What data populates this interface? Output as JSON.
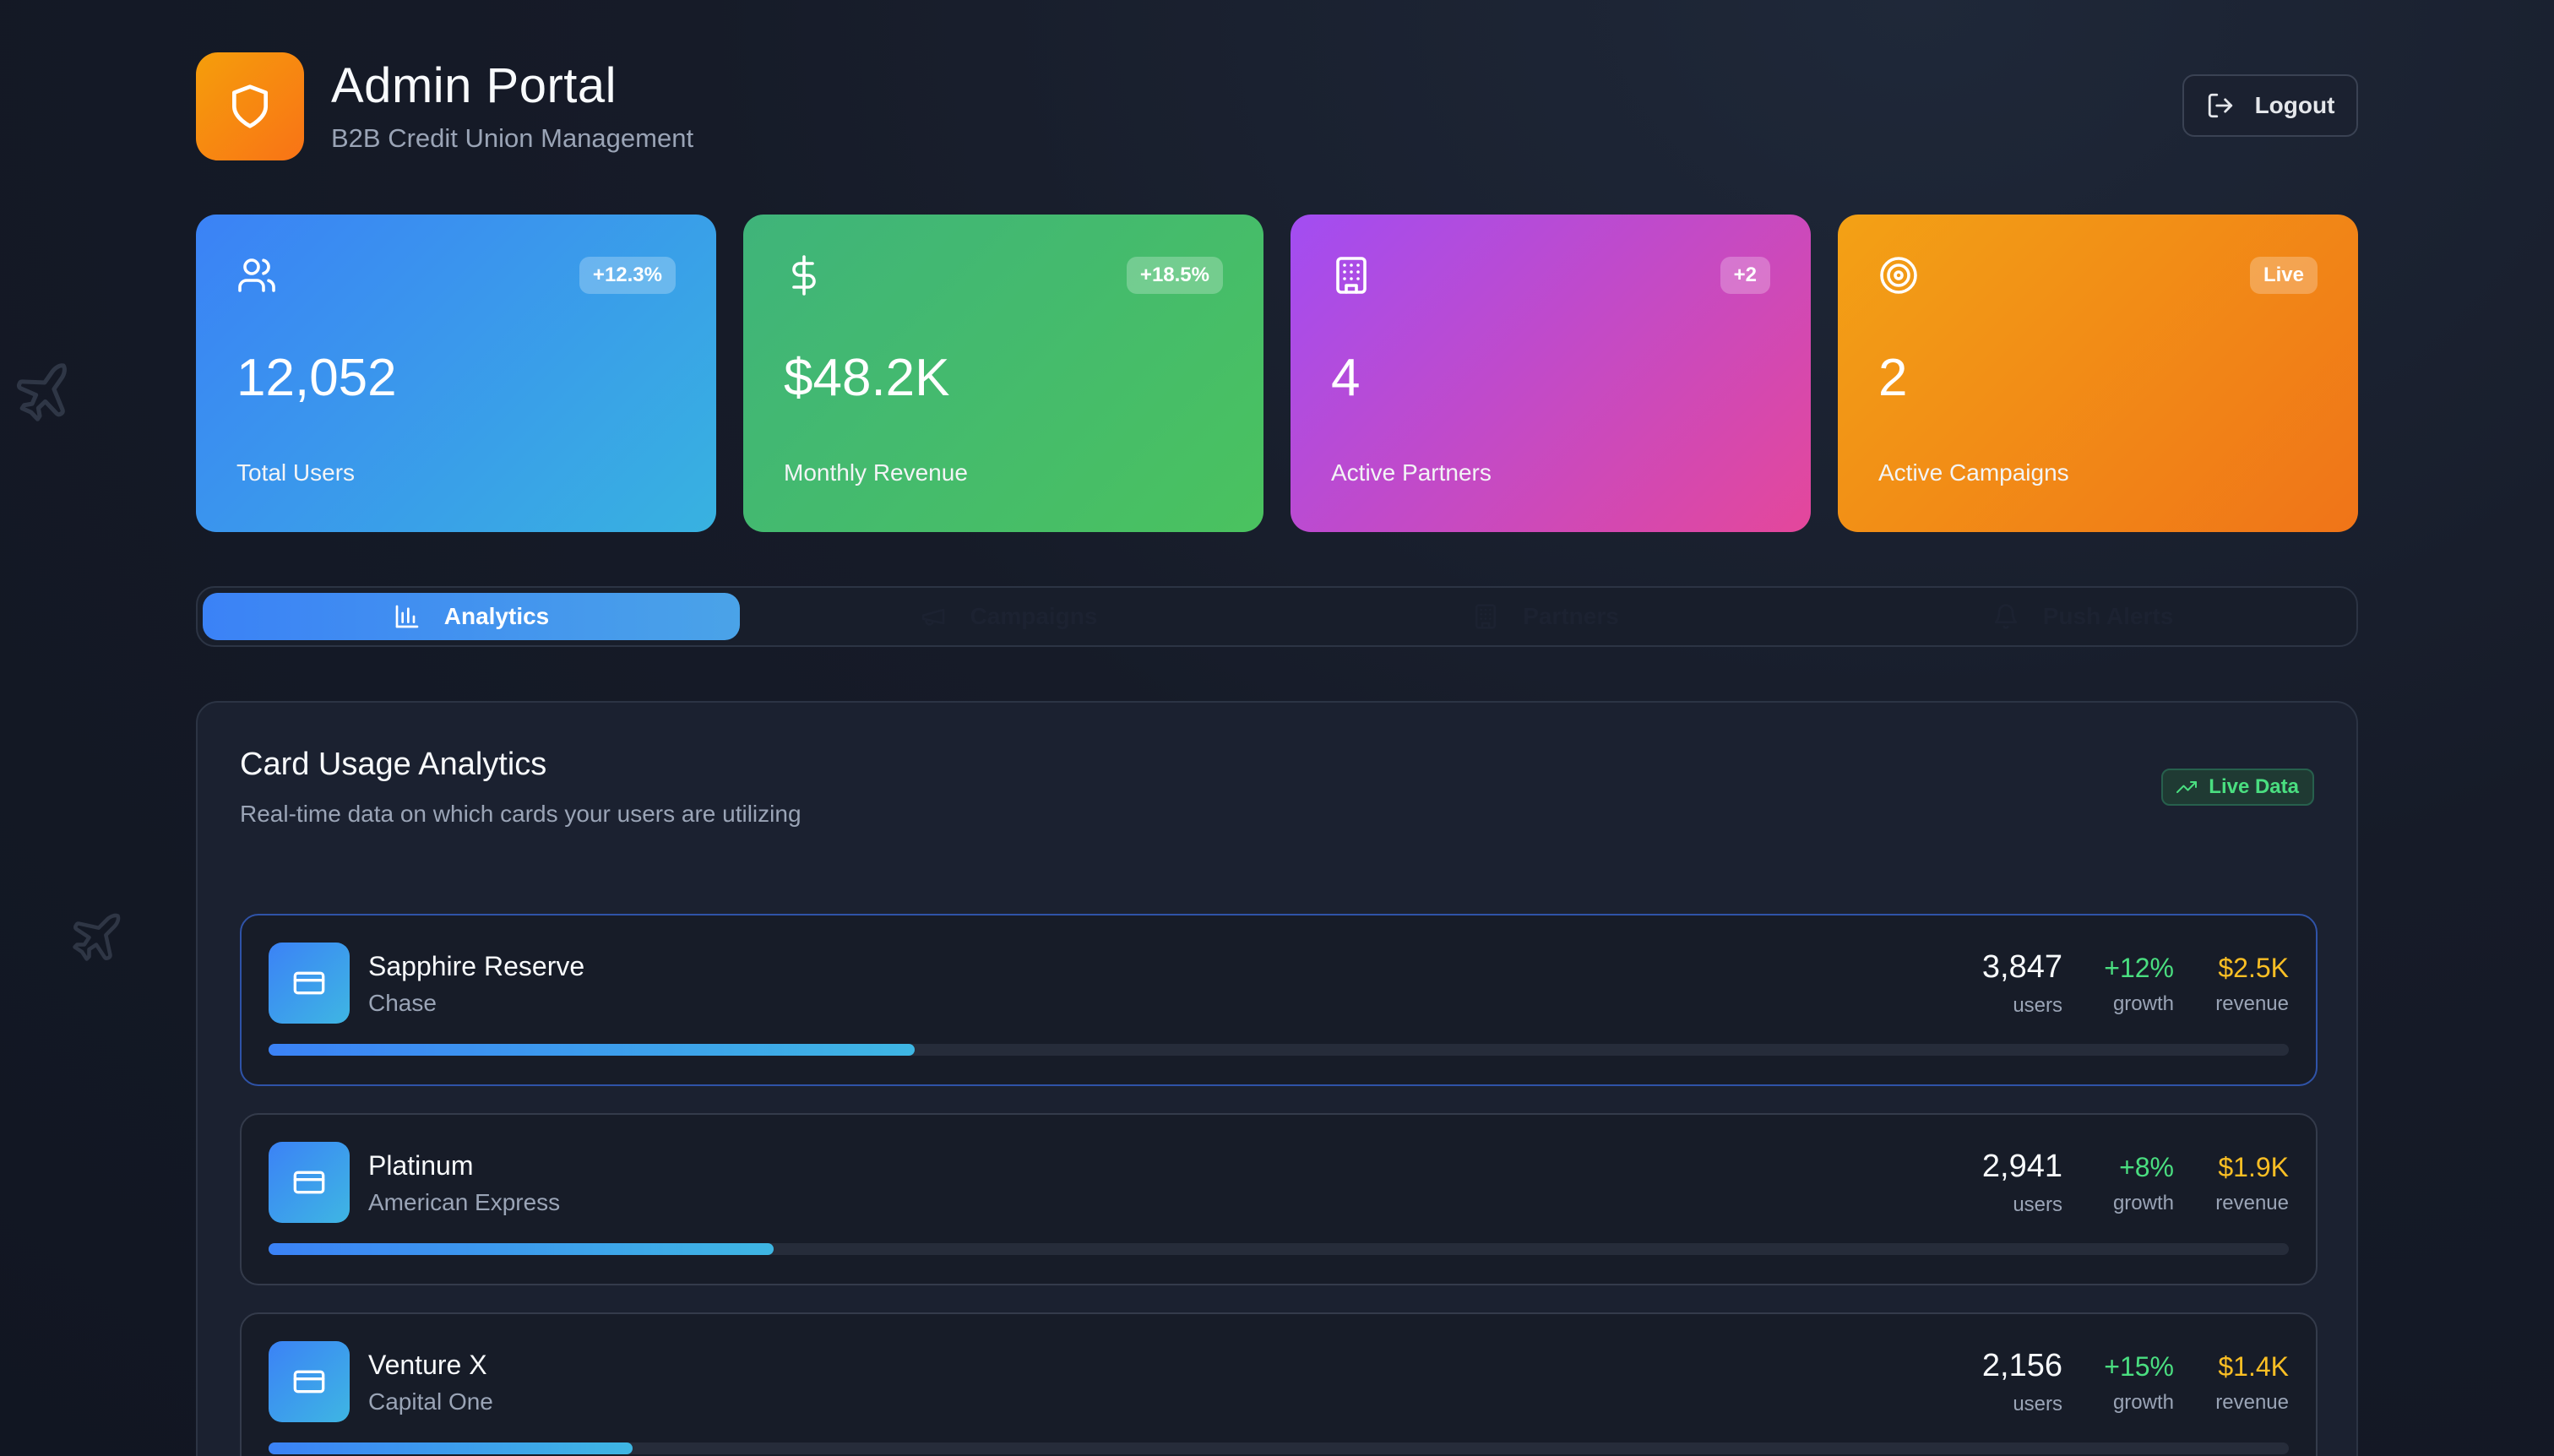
{
  "header": {
    "title": "Admin Portal",
    "subtitle": "B2B Credit Union Management",
    "logout_label": "Logout"
  },
  "stats": [
    {
      "icon": "users-icon",
      "badge": "+12.3%",
      "value": "12,052",
      "label": "Total Users"
    },
    {
      "icon": "dollar-icon",
      "badge": "+18.5%",
      "value": "$48.2K",
      "label": "Monthly Revenue"
    },
    {
      "icon": "building-icon",
      "badge": "+2",
      "value": "4",
      "label": "Active Partners"
    },
    {
      "icon": "target-icon",
      "badge": "Live",
      "value": "2",
      "label": "Active Campaigns"
    }
  ],
  "tabs": [
    {
      "label": "Analytics",
      "icon": "bar-chart-icon",
      "active": true
    },
    {
      "label": "Campaigns",
      "icon": "megaphone-icon",
      "active": false
    },
    {
      "label": "Partners",
      "icon": "building-icon",
      "active": false
    },
    {
      "label": "Push Alerts",
      "icon": "bell-icon",
      "active": false
    }
  ],
  "analytics": {
    "title": "Card Usage Analytics",
    "subtitle": "Real-time data on which cards your users are utilizing",
    "live_label": "Live Data",
    "users_label": "users",
    "growth_label": "growth",
    "revenue_label": "revenue",
    "cards": [
      {
        "name": "Sapphire Reserve",
        "issuer": "Chase",
        "users": "3,847",
        "growth": "+12%",
        "revenue": "$2.5K",
        "usage_share": 0.32
      },
      {
        "name": "Platinum",
        "issuer": "American Express",
        "users": "2,941",
        "growth": "+8%",
        "revenue": "$1.9K",
        "usage_share": 0.25
      },
      {
        "name": "Venture X",
        "issuer": "Capital One",
        "users": "2,156",
        "growth": "+15%",
        "revenue": "$1.4K",
        "usage_share": 0.18
      }
    ]
  },
  "colors": {
    "accent_blue": "#3b82f6",
    "growth_green": "#4ade80",
    "revenue_gold": "#fbbf24",
    "brand_orange": "#f59e0b"
  }
}
